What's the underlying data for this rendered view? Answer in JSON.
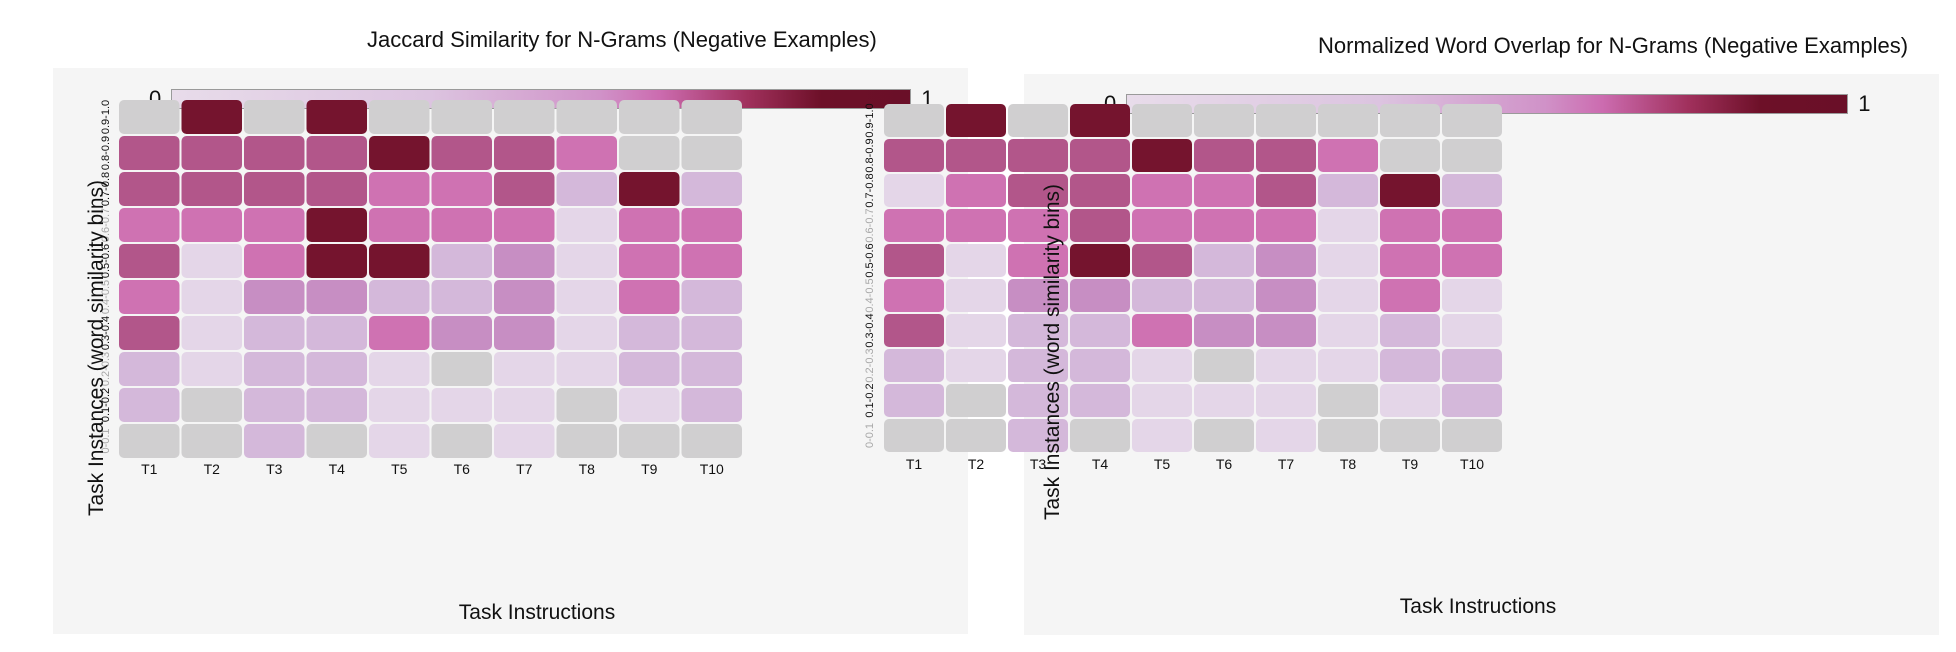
{
  "colors": {
    "grey": "#d0cfd0",
    "c1": "#e4d6e8",
    "c2": "#d4b8da",
    "c3": "#c78ec3",
    "c4": "#cf72b2",
    "c5": "#b2568a",
    "c6": "#75142e",
    "gradient": [
      "#e8dcea",
      "#dcc4e0",
      "#d092c8",
      "#cc6cb0",
      "#a0305c",
      "#6d1028",
      "#6a0f28"
    ]
  },
  "chart_data": [
    {
      "type": "heatmap",
      "title": "Jaccard Similarity for N-Grams (Negative Examples)",
      "xlabel": "Task Instructions",
      "ylabel": "Task Instances (word similarity bins)",
      "colorbar": {
        "min_label": "0",
        "max_label": "1"
      },
      "x_categories": [
        "T1",
        "T2",
        "T3",
        "T4",
        "T5",
        "T6",
        "T7",
        "T8",
        "T9",
        "T10"
      ],
      "y_categories": [
        "0.9-1.0",
        "0.8-0.9",
        "0.7-0.8",
        "0.6-0.7",
        "0.5-0.6",
        "0.4-0.5",
        "0.3-0.4",
        "0.2-0.3",
        "0.1-0.2",
        "0-0.1"
      ],
      "y_label_muted": [
        false,
        false,
        false,
        true,
        false,
        true,
        false,
        true,
        false,
        true
      ],
      "values": [
        [
          null,
          1.0,
          null,
          0.95,
          null,
          null,
          null,
          null,
          null,
          null
        ],
        [
          0.7,
          0.7,
          0.7,
          0.7,
          0.95,
          0.7,
          0.7,
          0.55,
          null,
          null
        ],
        [
          0.7,
          0.7,
          0.7,
          0.7,
          0.55,
          0.55,
          0.7,
          0.3,
          0.95,
          0.3
        ],
        [
          0.55,
          0.55,
          0.55,
          1.0,
          0.55,
          0.55,
          0.55,
          0.15,
          0.55,
          0.55
        ],
        [
          0.7,
          0.15,
          0.55,
          1.0,
          0.95,
          0.3,
          0.4,
          0.15,
          0.55,
          0.55
        ],
        [
          0.55,
          0.15,
          0.4,
          0.4,
          0.3,
          0.3,
          0.4,
          0.15,
          0.55,
          0.3
        ],
        [
          0.7,
          0.15,
          0.3,
          0.3,
          0.55,
          0.4,
          0.4,
          0.15,
          0.3,
          0.3
        ],
        [
          0.3,
          0.15,
          0.3,
          0.3,
          0.15,
          null,
          0.15,
          0.15,
          0.3,
          0.3
        ],
        [
          0.3,
          null,
          0.3,
          0.3,
          0.15,
          0.15,
          0.15,
          null,
          0.15,
          0.3
        ],
        [
          null,
          null,
          0.3,
          null,
          0.15,
          null,
          0.15,
          null,
          null,
          null
        ]
      ]
    },
    {
      "type": "heatmap",
      "title": "Normalized Word Overlap for N-Grams (Negative Examples)",
      "xlabel": "Task Instructions",
      "ylabel": "Task Instances (word similarity bins)",
      "colorbar": {
        "min_label": "0",
        "max_label": "1"
      },
      "x_categories": [
        "T1",
        "T2",
        "T3",
        "T4",
        "T5",
        "T6",
        "T7",
        "T8",
        "T9",
        "T10"
      ],
      "y_categories": [
        "0.9-1.0",
        "0.8-0.9",
        "0.7-0.8",
        "0.6-0.7",
        "0.5-0.6",
        "0.4-0.5",
        "0.3-0.4",
        "0.2-0.3",
        "0.1-0.2",
        "0-0.1"
      ],
      "y_label_muted": [
        false,
        false,
        false,
        true,
        false,
        true,
        false,
        true,
        false,
        true
      ],
      "values": [
        [
          null,
          1.0,
          null,
          0.95,
          null,
          null,
          null,
          null,
          null,
          null
        ],
        [
          0.7,
          0.7,
          0.7,
          0.7,
          0.95,
          0.7,
          0.7,
          0.55,
          null,
          null
        ],
        [
          0.15,
          0.55,
          0.7,
          0.7,
          0.55,
          0.55,
          0.7,
          0.3,
          0.95,
          0.3
        ],
        [
          0.55,
          0.55,
          0.55,
          0.7,
          0.55,
          0.55,
          0.55,
          0.15,
          0.55,
          0.55
        ],
        [
          0.7,
          0.15,
          0.55,
          1.0,
          0.7,
          0.3,
          0.4,
          0.15,
          0.55,
          0.55
        ],
        [
          0.55,
          0.15,
          0.4,
          0.4,
          0.3,
          0.3,
          0.4,
          0.15,
          0.55,
          0.15
        ],
        [
          0.7,
          0.15,
          0.3,
          0.3,
          0.55,
          0.4,
          0.4,
          0.15,
          0.3,
          0.15
        ],
        [
          0.3,
          0.15,
          0.3,
          0.3,
          0.15,
          null,
          0.15,
          0.15,
          0.3,
          0.3
        ],
        [
          0.3,
          null,
          0.3,
          0.3,
          0.15,
          0.15,
          0.15,
          null,
          0.15,
          0.3
        ],
        [
          null,
          null,
          0.3,
          null,
          0.15,
          null,
          0.15,
          null,
          null,
          null
        ]
      ]
    }
  ]
}
